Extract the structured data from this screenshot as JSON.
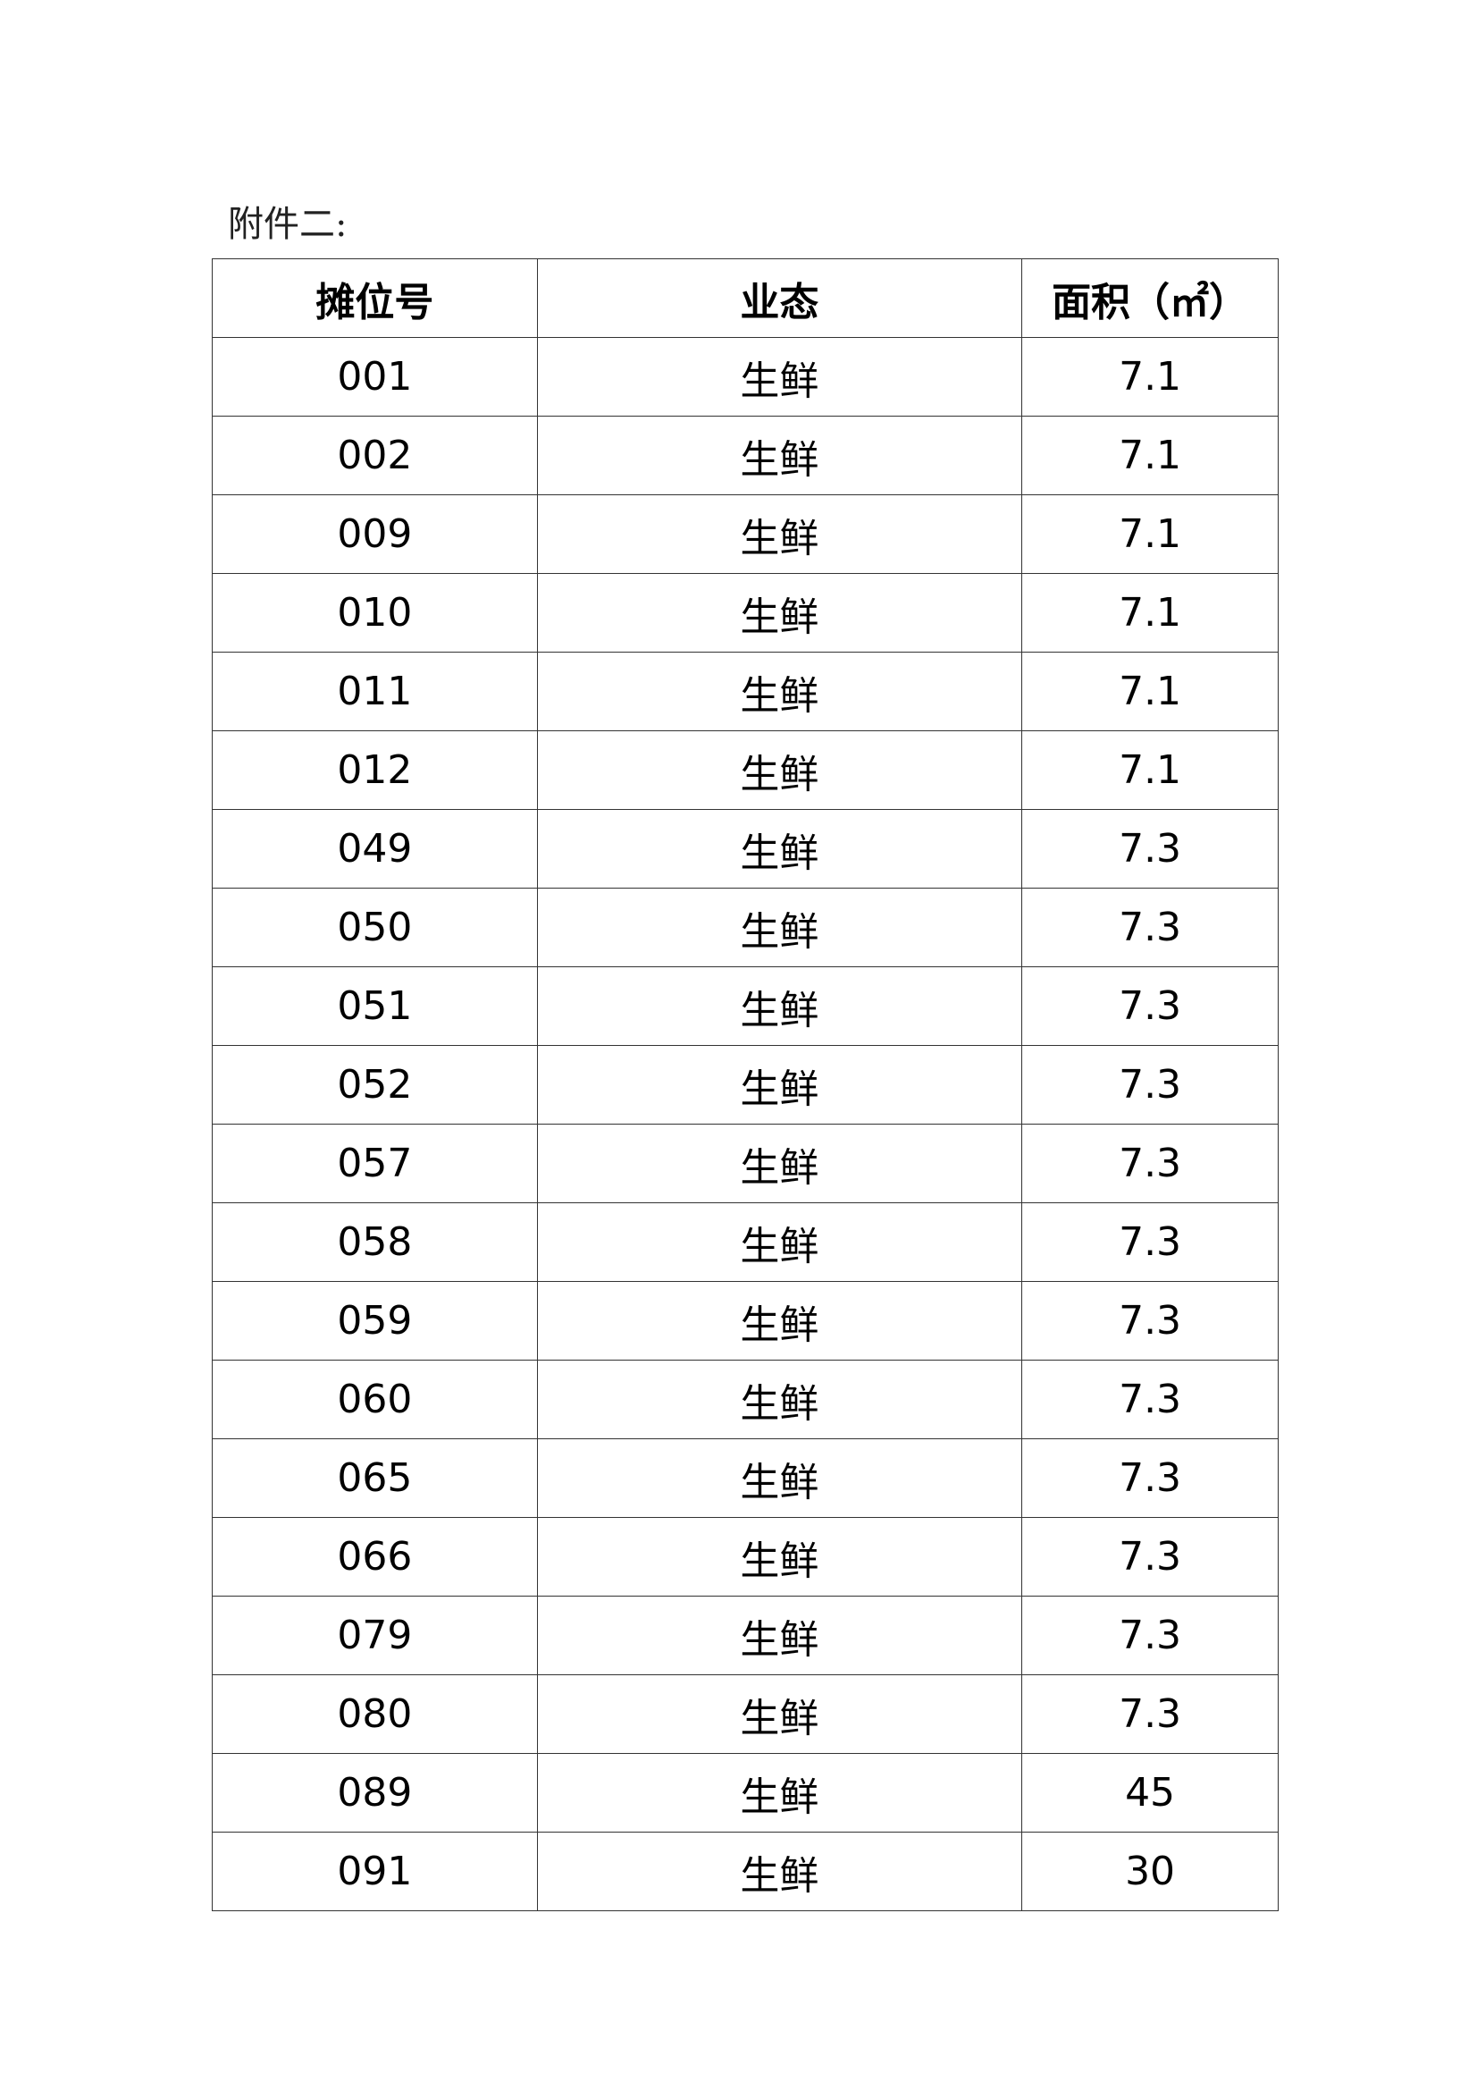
{
  "title": "附件二:",
  "table": {
    "headers": [
      "摊位号",
      "业态",
      "面积（㎡）"
    ],
    "rows": [
      [
        "001",
        "生鲜",
        "7.1"
      ],
      [
        "002",
        "生鲜",
        "7.1"
      ],
      [
        "009",
        "生鲜",
        "7.1"
      ],
      [
        "010",
        "生鲜",
        "7.1"
      ],
      [
        "011",
        "生鲜",
        "7.1"
      ],
      [
        "012",
        "生鲜",
        "7.1"
      ],
      [
        "049",
        "生鲜",
        "7.3"
      ],
      [
        "050",
        "生鲜",
        "7.3"
      ],
      [
        "051",
        "生鲜",
        "7.3"
      ],
      [
        "052",
        "生鲜",
        "7.3"
      ],
      [
        "057",
        "生鲜",
        "7.3"
      ],
      [
        "058",
        "生鲜",
        "7.3"
      ],
      [
        "059",
        "生鲜",
        "7.3"
      ],
      [
        "060",
        "生鲜",
        "7.3"
      ],
      [
        "065",
        "生鲜",
        "7.3"
      ],
      [
        "066",
        "生鲜",
        "7.3"
      ],
      [
        "079",
        "生鲜",
        "7.3"
      ],
      [
        "080",
        "生鲜",
        "7.3"
      ],
      [
        "089",
        "生鲜",
        "45"
      ],
      [
        "091",
        "生鲜",
        "30"
      ]
    ]
  }
}
